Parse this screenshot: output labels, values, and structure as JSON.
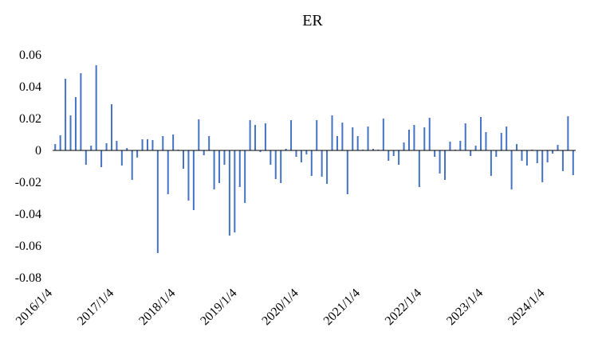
{
  "chart_data": {
    "type": "bar",
    "title": "ER",
    "xlabel": "",
    "ylabel": "",
    "ylim": [
      -0.08,
      0.06
    ],
    "yticks": [
      "0.06",
      "0.04",
      "0.02",
      "0",
      "-0.02",
      "-0.04",
      "-0.06",
      "-0.08"
    ],
    "ytick_values": [
      0.06,
      0.04,
      0.02,
      0,
      -0.02,
      -0.04,
      -0.06,
      -0.08
    ],
    "xtick_labels": [
      "2016/1/4",
      "2017/1/4",
      "2018/1/4",
      "2019/1/4",
      "2020/1/4",
      "2021/1/4",
      "2022/1/4",
      "2023/1/4",
      "2024/1/4"
    ],
    "xtick_indices": [
      0,
      12,
      24,
      36,
      48,
      60,
      72,
      84,
      96
    ],
    "grid": false,
    "legend": "none",
    "bar_color": "#4472C4",
    "series": [
      {
        "values": [
          0.004,
          0.0095,
          0.045,
          0.022,
          0.0335,
          0.0485,
          -0.009,
          0.003,
          0.0535,
          -0.0105,
          0.0045,
          0.029,
          0.006,
          -0.0095,
          0.0015,
          -0.0185,
          -0.0045,
          0.007,
          0.007,
          0.0065,
          -0.0645,
          0.009,
          -0.0275,
          0.01,
          0.0005,
          -0.0115,
          -0.0315,
          -0.0375,
          0.0195,
          -0.003,
          0.009,
          -0.0245,
          -0.0205,
          -0.009,
          -0.0535,
          -0.0515,
          -0.023,
          -0.033,
          0.019,
          0.016,
          -0.001,
          0.017,
          -0.009,
          -0.018,
          -0.0205,
          0.001,
          0.019,
          -0.004,
          -0.0075,
          -0.0025,
          -0.016,
          0.019,
          -0.0165,
          -0.021,
          0.022,
          0.009,
          0.0175,
          -0.0275,
          0.0145,
          0.009,
          0.0005,
          0.015,
          0.001,
          0.0005,
          0.02,
          -0.0065,
          -0.0035,
          -0.009,
          0.005,
          0.013,
          0.016,
          -0.023,
          0.0145,
          0.0205,
          -0.004,
          -0.0145,
          -0.0185,
          0.0055,
          0.0005,
          0.006,
          0.017,
          -0.0035,
          0.003,
          0.021,
          0.0115,
          -0.016,
          -0.004,
          0.011,
          0.015,
          -0.0245,
          0.004,
          -0.0065,
          -0.0095,
          0.0005,
          -0.008,
          -0.02,
          -0.0075,
          -0.002,
          0.0035,
          -0.013,
          0.0215,
          -0.0155
        ]
      }
    ]
  }
}
